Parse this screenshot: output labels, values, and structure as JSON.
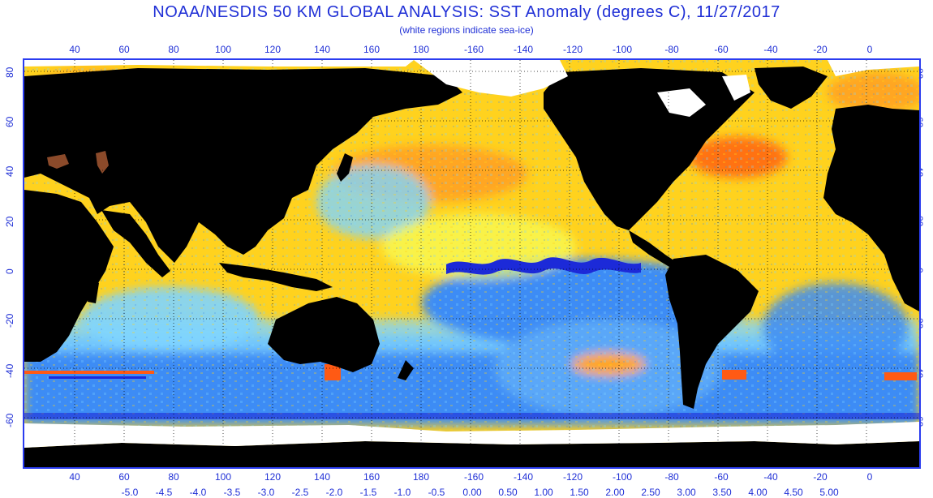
{
  "header": {
    "title": "NOAA/NESDIS 50 KM GLOBAL ANALYSIS: SST Anomaly (degrees C), 11/27/2017",
    "subtitle": "(white regions indicate sea-ice)"
  },
  "longitude_ticks": [
    "40",
    "60",
    "80",
    "100",
    "120",
    "140",
    "160",
    "180",
    "-160",
    "-140",
    "-120",
    "-100",
    "-80",
    "-60",
    "-40",
    "-20",
    "0"
  ],
  "latitude_ticks": [
    "80",
    "60",
    "40",
    "20",
    "0",
    "-20",
    "-40",
    "-60"
  ],
  "color_scale": {
    "labels": [
      "-5.0",
      "-4.5",
      "-4.0",
      "-3.5",
      "-3.0",
      "-2.5",
      "-2.0",
      "-1.5",
      "-1.0",
      "-0.5",
      "0.00",
      "0.50",
      "1.00",
      "1.50",
      "2.00",
      "2.50",
      "3.00",
      "3.50",
      "4.00",
      "4.50",
      "5.00"
    ]
  },
  "colors": {
    "land": "#000000",
    "sea_ice": "#ffffff",
    "frame": "#2a3cf0",
    "text": "#1f2fd6",
    "anomaly_very_cold": "#1c2ad8",
    "anomaly_cold": "#3d8cf5",
    "anomaly_cool": "#7fd4ff",
    "anomaly_neutral": "#f6ff5a",
    "anomaly_warm": "#ffd21e",
    "anomaly_warmer": "#ffa622",
    "anomaly_hot": "#ff5a14",
    "elevated_land": "#8b4a2a"
  }
}
